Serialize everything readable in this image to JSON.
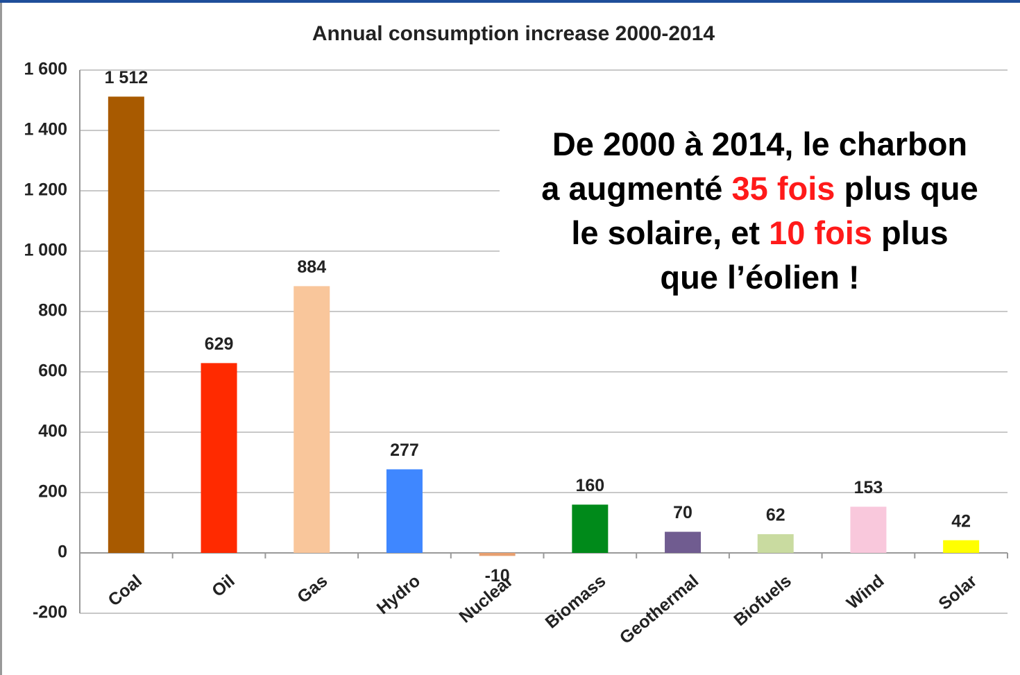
{
  "chart_data": {
    "type": "bar",
    "title": "Annual consumption increase 2000-2014",
    "categories": [
      "Coal",
      "Oil",
      "Gas",
      "Hydro",
      "Nuclear",
      "Biomass",
      "Geothermal",
      "Biofuels",
      "Wind",
      "Solar"
    ],
    "values": [
      1512,
      629,
      884,
      277,
      -10,
      160,
      70,
      62,
      153,
      42
    ],
    "value_labels": [
      "1 512",
      "629",
      "884",
      "277",
      "-10",
      "160",
      "70",
      "62",
      "153",
      "42"
    ],
    "colors": [
      "#a85a00",
      "#ff2a00",
      "#f9c69b",
      "#3f87ff",
      "#e8a070",
      "#008a1a",
      "#705c90",
      "#c9dba0",
      "#f9c8dc",
      "#ffff00"
    ],
    "ylim": [
      -200,
      1600
    ],
    "yticks": [
      {
        "value": -200,
        "label": "-200"
      },
      0,
      200,
      400,
      600,
      800,
      {
        "value": 1000,
        "label": "1 000"
      },
      {
        "value": 1200,
        "label": "1 200"
      },
      {
        "value": 1400,
        "label": "1 400"
      },
      {
        "value": 1600,
        "label": "1 600"
      }
    ],
    "grid": true,
    "annotation": {
      "lines": [
        [
          {
            "text": "De 2000 à 2014, le charbon"
          }
        ],
        [
          {
            "text": "a augmenté "
          },
          {
            "text": "35 fois",
            "color": "#ff1a1a"
          },
          {
            "text": " plus que"
          }
        ],
        [
          {
            "text": "le solaire, et "
          },
          {
            "text": "10 fois",
            "color": "#ff1a1a"
          },
          {
            "text": " plus"
          }
        ],
        [
          {
            "text": "que l’éolien !"
          }
        ]
      ]
    }
  }
}
